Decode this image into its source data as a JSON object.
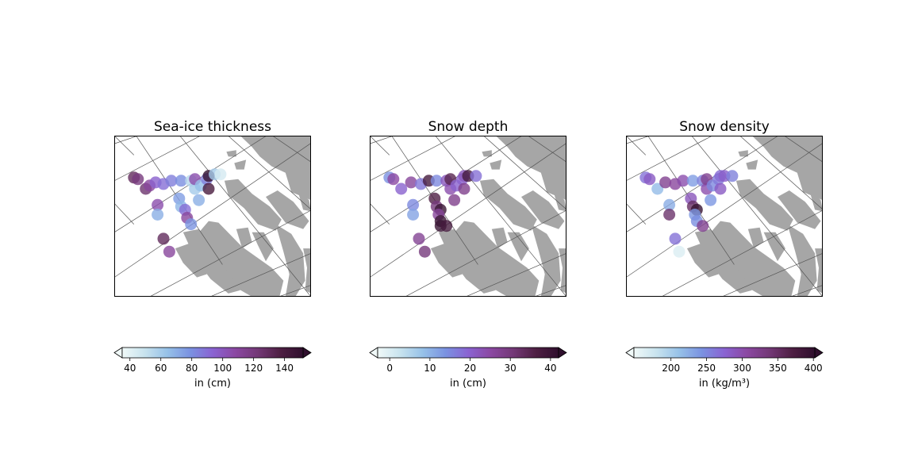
{
  "chart_data": [
    {
      "type": "scatter",
      "title": "Sea-ice thickness",
      "colorbar": {
        "label": "in (cm)",
        "ticks": [
          40,
          60,
          80,
          100,
          120,
          140
        ],
        "range": [
          35,
          152
        ],
        "extend": "both"
      },
      "points": [
        {
          "lon": 0.1,
          "lat": 0.26,
          "value": 130
        },
        {
          "lon": 0.12,
          "lat": 0.27,
          "value": 120
        },
        {
          "lon": 0.16,
          "lat": 0.33,
          "value": 125
        },
        {
          "lon": 0.18,
          "lat": 0.31,
          "value": 110
        },
        {
          "lon": 0.21,
          "lat": 0.29,
          "value": 95
        },
        {
          "lon": 0.25,
          "lat": 0.3,
          "value": 90
        },
        {
          "lon": 0.29,
          "lat": 0.28,
          "value": 85
        },
        {
          "lon": 0.34,
          "lat": 0.28,
          "value": 80
        },
        {
          "lon": 0.39,
          "lat": 0.28,
          "value": 55
        },
        {
          "lon": 0.41,
          "lat": 0.33,
          "value": 60
        },
        {
          "lon": 0.41,
          "lat": 0.27,
          "value": 105
        },
        {
          "lon": 0.44,
          "lat": 0.31,
          "value": 65
        },
        {
          "lon": 0.47,
          "lat": 0.27,
          "value": 85
        },
        {
          "lon": 0.48,
          "lat": 0.25,
          "value": 150
        },
        {
          "lon": 0.48,
          "lat": 0.33,
          "value": 140
        },
        {
          "lon": 0.51,
          "lat": 0.24,
          "value": 60
        },
        {
          "lon": 0.54,
          "lat": 0.24,
          "value": 45
        },
        {
          "lon": 0.33,
          "lat": 0.39,
          "value": 75
        },
        {
          "lon": 0.34,
          "lat": 0.44,
          "value": 68
        },
        {
          "lon": 0.36,
          "lat": 0.46,
          "value": 90
        },
        {
          "lon": 0.37,
          "lat": 0.51,
          "value": 110
        },
        {
          "lon": 0.39,
          "lat": 0.55,
          "value": 78
        },
        {
          "lon": 0.43,
          "lat": 0.4,
          "value": 70
        },
        {
          "lon": 0.22,
          "lat": 0.43,
          "value": 105
        },
        {
          "lon": 0.22,
          "lat": 0.49,
          "value": 70
        },
        {
          "lon": 0.25,
          "lat": 0.64,
          "value": 130
        },
        {
          "lon": 0.28,
          "lat": 0.72,
          "value": 110
        }
      ]
    },
    {
      "type": "scatter",
      "title": "Snow depth",
      "colorbar": {
        "label": "in (cm)",
        "ticks": [
          0,
          10,
          20,
          30,
          40
        ],
        "range": [
          -3,
          42
        ],
        "extend": "both"
      },
      "points": [
        {
          "lon": 0.1,
          "lat": 0.26,
          "value": 14
        },
        {
          "lon": 0.12,
          "lat": 0.27,
          "value": 25
        },
        {
          "lon": 0.16,
          "lat": 0.33,
          "value": 20
        },
        {
          "lon": 0.21,
          "lat": 0.29,
          "value": 26
        },
        {
          "lon": 0.26,
          "lat": 0.3,
          "value": 17
        },
        {
          "lon": 0.3,
          "lat": 0.28,
          "value": 38
        },
        {
          "lon": 0.34,
          "lat": 0.28,
          "value": 15
        },
        {
          "lon": 0.39,
          "lat": 0.28,
          "value": 22
        },
        {
          "lon": 0.41,
          "lat": 0.33,
          "value": 24
        },
        {
          "lon": 0.41,
          "lat": 0.27,
          "value": 35
        },
        {
          "lon": 0.44,
          "lat": 0.31,
          "value": 20
        },
        {
          "lon": 0.47,
          "lat": 0.27,
          "value": 20
        },
        {
          "lon": 0.48,
          "lat": 0.25,
          "value": 22
        },
        {
          "lon": 0.48,
          "lat": 0.33,
          "value": 28
        },
        {
          "lon": 0.5,
          "lat": 0.25,
          "value": 38
        },
        {
          "lon": 0.54,
          "lat": 0.25,
          "value": 18
        },
        {
          "lon": 0.33,
          "lat": 0.39,
          "value": 36
        },
        {
          "lon": 0.34,
          "lat": 0.44,
          "value": 30
        },
        {
          "lon": 0.36,
          "lat": 0.46,
          "value": 40
        },
        {
          "lon": 0.35,
          "lat": 0.49,
          "value": 26
        },
        {
          "lon": 0.36,
          "lat": 0.53,
          "value": 40
        },
        {
          "lon": 0.36,
          "lat": 0.56,
          "value": 40
        },
        {
          "lon": 0.39,
          "lat": 0.56,
          "value": 38
        },
        {
          "lon": 0.43,
          "lat": 0.4,
          "value": 28
        },
        {
          "lon": 0.22,
          "lat": 0.43,
          "value": 15
        },
        {
          "lon": 0.22,
          "lat": 0.49,
          "value": 12
        },
        {
          "lon": 0.25,
          "lat": 0.64,
          "value": 27
        },
        {
          "lon": 0.28,
          "lat": 0.72,
          "value": 30
        }
      ]
    },
    {
      "type": "scatter",
      "title": "Snow density",
      "colorbar": {
        "label": "in (kg/m³)",
        "ticks": [
          200,
          250,
          300,
          350,
          400
        ],
        "range": [
          148,
          402
        ],
        "extend": "both"
      },
      "points": [
        {
          "lon": 0.1,
          "lat": 0.26,
          "value": 265
        },
        {
          "lon": 0.12,
          "lat": 0.27,
          "value": 285
        },
        {
          "lon": 0.16,
          "lat": 0.33,
          "value": 215
        },
        {
          "lon": 0.2,
          "lat": 0.29,
          "value": 320
        },
        {
          "lon": 0.25,
          "lat": 0.3,
          "value": 310
        },
        {
          "lon": 0.29,
          "lat": 0.28,
          "value": 300
        },
        {
          "lon": 0.34,
          "lat": 0.28,
          "value": 235
        },
        {
          "lon": 0.39,
          "lat": 0.28,
          "value": 255
        },
        {
          "lon": 0.41,
          "lat": 0.33,
          "value": 300
        },
        {
          "lon": 0.41,
          "lat": 0.27,
          "value": 320
        },
        {
          "lon": 0.44,
          "lat": 0.31,
          "value": 250
        },
        {
          "lon": 0.47,
          "lat": 0.27,
          "value": 260
        },
        {
          "lon": 0.48,
          "lat": 0.25,
          "value": 270
        },
        {
          "lon": 0.48,
          "lat": 0.33,
          "value": 285
        },
        {
          "lon": 0.5,
          "lat": 0.25,
          "value": 280
        },
        {
          "lon": 0.54,
          "lat": 0.25,
          "value": 255
        },
        {
          "lon": 0.33,
          "lat": 0.39,
          "value": 290
        },
        {
          "lon": 0.34,
          "lat": 0.44,
          "value": 350
        },
        {
          "lon": 0.36,
          "lat": 0.46,
          "value": 395
        },
        {
          "lon": 0.35,
          "lat": 0.49,
          "value": 240
        },
        {
          "lon": 0.36,
          "lat": 0.53,
          "value": 245
        },
        {
          "lon": 0.39,
          "lat": 0.56,
          "value": 320
        },
        {
          "lon": 0.43,
          "lat": 0.4,
          "value": 240
        },
        {
          "lon": 0.22,
          "lat": 0.43,
          "value": 225
        },
        {
          "lon": 0.22,
          "lat": 0.49,
          "value": 345
        },
        {
          "lon": 0.25,
          "lat": 0.64,
          "value": 265
        },
        {
          "lon": 0.27,
          "lat": 0.72,
          "value": 165
        }
      ]
    }
  ],
  "colors": {
    "land": "#a6a6a6",
    "gridline": "#555555",
    "colormap": [
      "#f0f9f8",
      "#c8e3ee",
      "#96c1e8",
      "#7a92e1",
      "#8a63d2",
      "#8b48a2",
      "#733876",
      "#4e1f43",
      "#2f0f2d"
    ]
  }
}
